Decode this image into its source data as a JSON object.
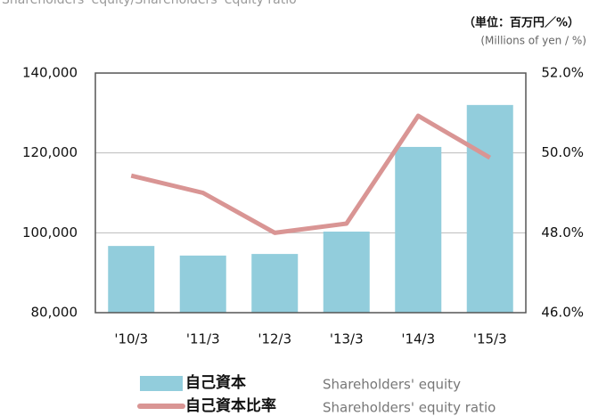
{
  "chart_data": {
    "type": "bar_line",
    "title": "Shareholders' equity/Shareholders' equity ratio",
    "unit_jp": "（単位：百万円／%）",
    "unit_en": "(Millions of yen / %)",
    "categories": [
      "'10/3",
      "'11/3",
      "'12/3",
      "'13/3",
      "'14/3",
      "'15/3"
    ],
    "series": [
      {
        "name": "自己資本",
        "name_en": "Shareholders' equity",
        "type": "bar",
        "color": "#92cddc",
        "values": [
          96700,
          94300,
          94700,
          100300,
          121500,
          132000
        ]
      },
      {
        "name": "自己資本比率",
        "name_en": "Shareholders' equity ratio",
        "type": "line",
        "axis": "y2",
        "color": "#d99594",
        "values": [
          49.43,
          49.0,
          48.0,
          48.23,
          50.93,
          49.88
        ]
      }
    ],
    "ylim": [
      80000,
      140000
    ],
    "yticks": [
      {
        "value": 80000,
        "label": "80,000"
      },
      {
        "value": 100000,
        "label": "100,000"
      },
      {
        "value": 120000,
        "label": "120,000"
      },
      {
        "value": 140000,
        "label": "140,000"
      }
    ],
    "y2lim": [
      46,
      52
    ],
    "y2ticks": [
      {
        "value": 46,
        "label": "46.0%"
      },
      {
        "value": 48,
        "label": "48.0%"
      },
      {
        "value": 50,
        "label": "50.0%"
      },
      {
        "value": 52,
        "label": "52.0%"
      }
    ],
    "grid": true
  }
}
